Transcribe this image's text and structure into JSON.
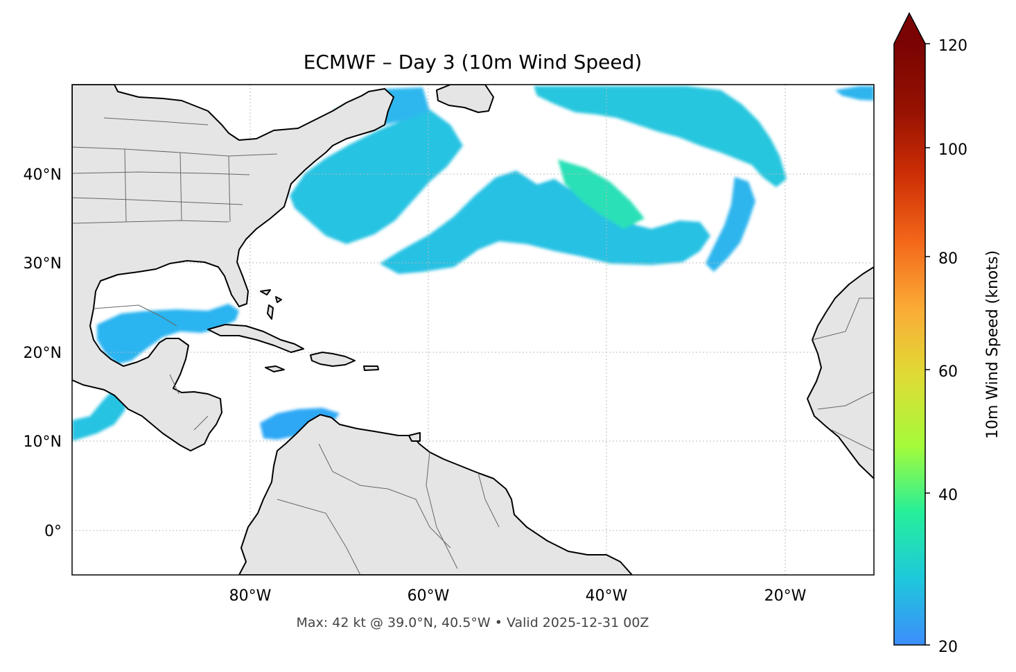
{
  "title": "ECMWF – Day 3 (10m Wind Speed)",
  "footer": "Max: 42 kt @ 39.0°N, 40.5°W • Valid 2025-12-31 00Z",
  "map": {
    "extent": {
      "lon_min": -100,
      "lon_max": -10,
      "lat_min": -5,
      "lat_max": 50
    },
    "lon_ticks": [
      {
        "value": -80,
        "label": "80°W"
      },
      {
        "value": -60,
        "label": "60°W"
      },
      {
        "value": -40,
        "label": "40°W"
      },
      {
        "value": -20,
        "label": "20°W"
      }
    ],
    "lat_ticks": [
      {
        "value": 40,
        "label": "40°N"
      },
      {
        "value": 30,
        "label": "30°N"
      },
      {
        "value": 20,
        "label": "20°N"
      },
      {
        "value": 10,
        "label": "10°N"
      },
      {
        "value": 0,
        "label": "0°"
      }
    ],
    "land_color": "#e5e5e5",
    "coast_color": "#000000",
    "border_color": "#666666",
    "gridlines": true
  },
  "colorbar": {
    "label": "10m Wind Speed (knots)",
    "min": 20,
    "max": 120,
    "extend": "max",
    "ticks": [
      {
        "value": 20,
        "label": "20"
      },
      {
        "value": 40,
        "label": "40"
      },
      {
        "value": 60,
        "label": "60"
      },
      {
        "value": 80,
        "label": "80"
      },
      {
        "value": 100,
        "label": "100"
      },
      {
        "value": 120,
        "label": "120"
      }
    ],
    "colormap": "turbo",
    "colors": [
      "#3d8dfb",
      "#1ec8dc",
      "#25ef9a",
      "#a4fb3a",
      "#e0da35",
      "#fbab36",
      "#f3681a",
      "#ce2f05",
      "#961101",
      "#7a0403"
    ]
  },
  "chart_data": {
    "type": "heatmap",
    "title": "ECMWF – Day 3 (10m Wind Speed)",
    "colorbar_label": "10m Wind Speed (knots)",
    "value_range": [
      20,
      120
    ],
    "max": {
      "value_kt": 42,
      "lat": 39.0,
      "lon": -40.5
    },
    "valid": "2025-12-31 00Z",
    "wind_regions": [
      {
        "name": "off-us-northeast-coast",
        "lon": [
          -72,
          -57
        ],
        "lat": [
          33,
          47
        ],
        "approx_kt": 27
      },
      {
        "name": "central-atlantic-band",
        "lon": [
          -60,
          -37
        ],
        "lat": [
          29,
          40
        ],
        "approx_kt": 26
      },
      {
        "name": "max-core",
        "lon": [
          -45,
          -34
        ],
        "lat": [
          31,
          41
        ],
        "approx_kt": 32
      },
      {
        "name": "northern-arc",
        "lon": [
          -52,
          -22
        ],
        "lat": [
          38,
          50
        ],
        "approx_kt": 26
      },
      {
        "name": "east-atlantic-arc",
        "lon": [
          -32,
          -27
        ],
        "lat": [
          29,
          39
        ],
        "approx_kt": 24
      },
      {
        "name": "far-northeast",
        "lon": [
          -16,
          -10
        ],
        "lat": [
          49,
          50
        ],
        "approx_kt": 24
      },
      {
        "name": "gulf-of-mexico",
        "lon": [
          -98,
          -82
        ],
        "lat": [
          20,
          25
        ],
        "approx_kt": 25
      },
      {
        "name": "eastern-pacific-tehuantepec",
        "lon": [
          -100,
          -94
        ],
        "lat": [
          10,
          16
        ],
        "approx_kt": 27
      },
      {
        "name": "southern-caribbean",
        "lon": [
          -77,
          -69
        ],
        "lat": [
          9,
          13
        ],
        "approx_kt": 23
      }
    ]
  }
}
